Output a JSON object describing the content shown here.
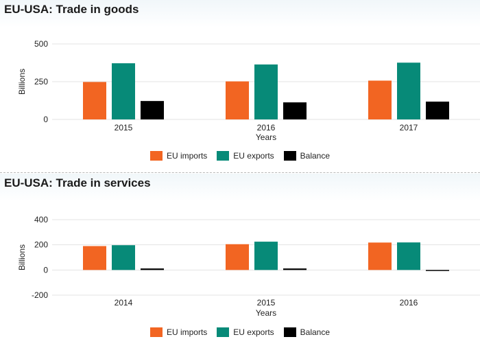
{
  "chart_data": [
    {
      "type": "bar",
      "title": "EU-USA: Trade in goods",
      "xlabel": "Years",
      "ylabel": "Billions",
      "categories": [
        "2015",
        "2016",
        "2017"
      ],
      "ylim": [
        0,
        500
      ],
      "yticks": [
        0,
        250,
        500
      ],
      "grid": true,
      "legend_position": "bottom",
      "series": [
        {
          "name": "EU imports",
          "color": "#f26522",
          "values": [
            248,
            252,
            257
          ]
        },
        {
          "name": "EU exports",
          "color": "#078a78",
          "values": [
            372,
            364,
            376
          ]
        },
        {
          "name": "Balance",
          "color": "#000000",
          "values": [
            122,
            113,
            118
          ]
        }
      ]
    },
    {
      "type": "bar",
      "title": "EU-USA: Trade in services",
      "xlabel": "Years",
      "ylabel": "Billions",
      "categories": [
        "2014",
        "2015",
        "2016"
      ],
      "ylim": [
        -200,
        400
      ],
      "yticks": [
        -200,
        0,
        200,
        400
      ],
      "grid": true,
      "legend_position": "bottom",
      "series": [
        {
          "name": "EU imports",
          "color": "#f26522",
          "values": [
            190,
            205,
            218
          ]
        },
        {
          "name": "EU exports",
          "color": "#078a78",
          "values": [
            197,
            225,
            219
          ]
        },
        {
          "name": "Balance",
          "color": "#000000",
          "values": [
            12,
            12,
            -8
          ]
        }
      ]
    }
  ]
}
